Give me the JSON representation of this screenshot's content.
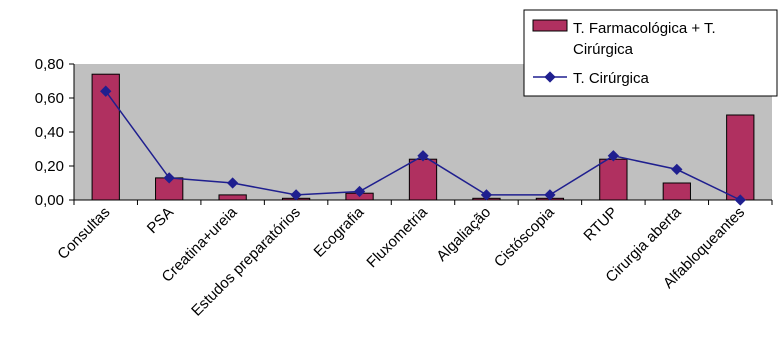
{
  "chart_data": {
    "type": "bar",
    "categories": [
      "Consultas",
      "PSA",
      "Creatina+ureia",
      "Estudos preparatórios",
      "Ecografia",
      "Fluxometria",
      "Algaliação",
      "Cistóscopia",
      "RTUP",
      "Cirurgia aberta",
      "Alfabloqueantes"
    ],
    "series": [
      {
        "name": "T. Farmacológica + T. Cirúrgica",
        "kind": "bar",
        "color": "#b03060",
        "values": [
          0.74,
          0.13,
          0.03,
          0.01,
          0.04,
          0.24,
          0.01,
          0.01,
          0.24,
          0.1,
          0.5
        ]
      },
      {
        "name": "T. Cirúrgica",
        "kind": "line",
        "color": "#1f1f8f",
        "values": [
          0.64,
          0.13,
          0.1,
          0.03,
          0.05,
          0.26,
          0.03,
          0.03,
          0.26,
          0.18,
          0.0
        ]
      }
    ],
    "y_ticks": [
      "0,00",
      "0,20",
      "0,40",
      "0,60",
      "0,80"
    ],
    "ylim": [
      0,
      0.8
    ],
    "grid": false,
    "plot_background": "#c0c0c0",
    "legend_position": "top-right",
    "legend": {
      "bar_label_line1": "T. Farmacológica + T.",
      "bar_label_line2": "Cirúrgica",
      "line_label": "T. Cirúrgica"
    }
  }
}
